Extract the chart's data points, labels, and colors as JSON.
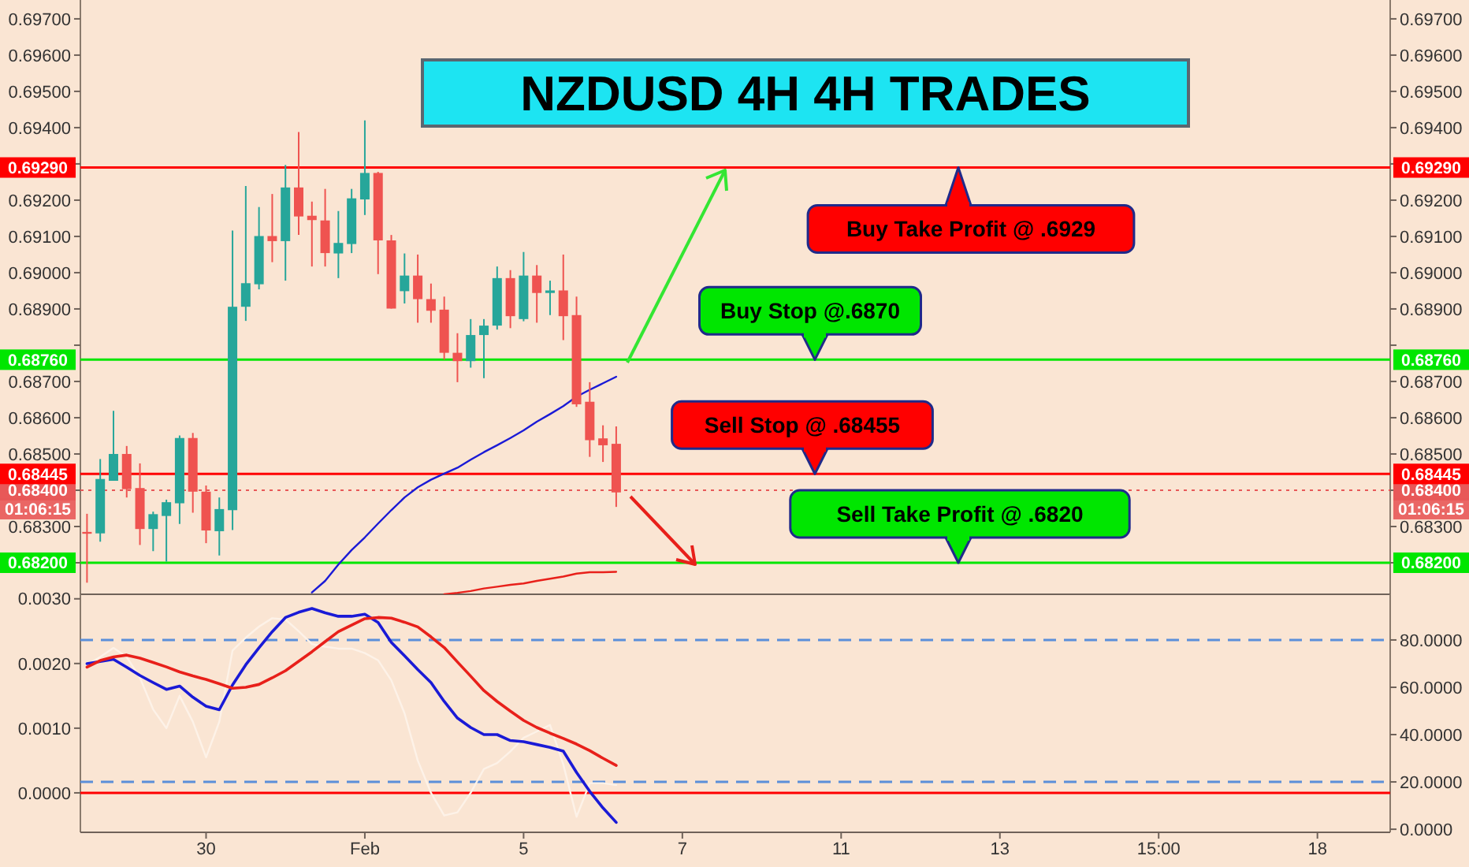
{
  "chart_data": [
    {
      "type": "candlestick",
      "title": "NZDUSD 4H 4H TRADES",
      "categories": [
        null,
        null,
        null,
        null,
        null,
        null,
        null,
        null,
        null,
        null,
        null,
        null,
        null,
        null,
        null,
        null,
        null,
        null,
        null,
        null,
        null,
        null,
        null,
        null,
        null,
        null,
        null,
        null,
        null,
        null,
        null,
        null,
        null,
        null,
        null,
        null,
        null,
        null,
        null,
        null,
        null,
        null,
        null,
        null,
        null,
        null,
        null,
        null,
        null,
        null,
        null,
        null,
        null,
        null,
        null,
        null,
        null,
        null,
        null,
        null,
        null,
        null,
        null,
        null,
        null,
        null,
        null,
        null,
        null,
        null,
        null,
        null,
        null,
        null,
        null,
        null,
        null,
        null,
        null,
        null,
        null,
        null,
        null,
        null,
        null,
        null,
        null,
        null,
        null,
        null,
        null,
        null,
        null,
        null,
        null,
        null,
        null,
        null,
        null
      ],
      "ohlc": [
        [
          0.68285,
          0.68335,
          0.68145,
          0.6828
        ],
        [
          0.68281,
          0.68486,
          0.68258,
          0.68431
        ],
        [
          0.68426,
          0.68619,
          0.68426,
          0.685
        ],
        [
          0.685,
          0.68522,
          0.6838,
          0.68403
        ],
        [
          0.68406,
          0.68474,
          0.68249,
          0.68293
        ],
        [
          0.68293,
          0.68341,
          0.68232,
          0.68334
        ],
        [
          0.68329,
          0.68374,
          0.68203,
          0.68367
        ],
        [
          0.68364,
          0.68551,
          0.68307,
          0.68544
        ],
        [
          0.68544,
          0.68558,
          0.68338,
          0.68396
        ],
        [
          0.68396,
          0.68413,
          0.68254,
          0.68289
        ],
        [
          0.68287,
          0.6838,
          0.6822,
          0.68348
        ],
        [
          0.68345,
          0.69116,
          0.6829,
          0.68906
        ],
        [
          0.68906,
          0.69239,
          0.68867,
          0.68971
        ],
        [
          0.68968,
          0.69181,
          0.68954,
          0.69101
        ],
        [
          0.69101,
          0.69217,
          0.69029,
          0.69087
        ],
        [
          0.69087,
          0.69297,
          0.68978,
          0.69235
        ],
        [
          0.69235,
          0.69388,
          0.69104,
          0.69155
        ],
        [
          0.69157,
          0.69196,
          0.69017,
          0.69145
        ],
        [
          0.69144,
          0.69231,
          0.69017,
          0.69054
        ],
        [
          0.69053,
          0.6917,
          0.68985,
          0.69082
        ],
        [
          0.69079,
          0.69231,
          0.69054,
          0.69205
        ],
        [
          0.69202,
          0.6942,
          0.69159,
          0.69275
        ],
        [
          0.69275,
          0.69278,
          0.68996,
          0.69089
        ],
        [
          0.69089,
          0.69104,
          0.68901,
          0.68901
        ],
        [
          0.68949,
          0.69053,
          0.68915,
          0.68992
        ],
        [
          0.68992,
          0.6905,
          0.68862,
          0.68927
        ],
        [
          0.68927,
          0.6897,
          0.68862,
          0.68895
        ],
        [
          0.68898,
          0.68934,
          0.6876,
          0.68779
        ],
        [
          0.68779,
          0.68833,
          0.68698,
          0.68756
        ],
        [
          0.68756,
          0.68872,
          0.68738,
          0.68828
        ],
        [
          0.68828,
          0.68872,
          0.68709,
          0.68854
        ],
        [
          0.68854,
          0.69017,
          0.68843,
          0.68985
        ],
        [
          0.68985,
          0.69007,
          0.68847,
          0.6888
        ],
        [
          0.68872,
          0.69057,
          0.68866,
          0.68992
        ],
        [
          0.68992,
          0.69021,
          0.68862,
          0.68944
        ],
        [
          0.68944,
          0.68978,
          0.68883,
          0.68951
        ],
        [
          0.68951,
          0.6905,
          0.68814,
          0.6888
        ],
        [
          0.68883,
          0.68934,
          0.6863,
          0.68637
        ],
        [
          0.68644,
          0.68698,
          0.68492,
          0.68538
        ],
        [
          0.68543,
          0.68579,
          0.68478,
          0.68524
        ],
        [
          0.68528,
          0.68576,
          0.68354,
          0.68394
        ],
        null,
        null,
        null,
        null,
        null,
        null,
        null,
        null,
        null,
        null,
        null,
        null,
        null,
        null,
        null,
        null,
        null,
        null,
        null,
        null,
        null,
        null,
        null,
        null,
        null,
        null,
        null,
        null,
        null,
        null,
        null,
        null,
        null,
        null,
        null,
        null,
        null,
        null,
        null,
        null,
        null,
        null,
        null,
        null,
        null,
        null,
        null,
        null,
        null,
        null,
        null,
        null,
        null,
        null,
        null,
        null,
        null,
        null
      ],
      "colors": [
        "#ef5350",
        "#26a69a",
        "#26a69a",
        "#ef5350",
        "#ef5350",
        "#26a69a",
        "#26a69a",
        "#26a69a",
        "#ef5350",
        "#ef5350",
        "#26a69a",
        "#26a69a",
        "#26a69a",
        "#26a69a",
        "#ef5350",
        "#26a69a",
        "#ef5350",
        "#ef5350",
        "#ef5350",
        "#26a69a",
        "#26a69a",
        "#26a69a",
        "#ef5350",
        "#ef5350",
        "#26a69a",
        "#ef5350",
        "#ef5350",
        "#ef5350",
        "#ef5350",
        "#26a69a",
        "#26a69a",
        "#26a69a",
        "#ef5350",
        "#26a69a",
        "#ef5350",
        "#26a69a",
        "#ef5350",
        "#ef5350",
        "#ef5350",
        "#ef5350",
        "#ef5350",
        null,
        null,
        null,
        null,
        null,
        null,
        null,
        null,
        null,
        null,
        null,
        null,
        null,
        null,
        null,
        null,
        null,
        null,
        null,
        null,
        null,
        null,
        null,
        null,
        null,
        null,
        null,
        null,
        null,
        null,
        null,
        null,
        null,
        null,
        null,
        null,
        null,
        null,
        null,
        null,
        null,
        null,
        null,
        null,
        null,
        null,
        null,
        null,
        null,
        null,
        null,
        null,
        null,
        null,
        null,
        null,
        null,
        null
      ],
      "series": [
        {
          "type": "line",
          "color": "#1a1ad6",
          "values": [
            null,
            null,
            null,
            null,
            null,
            null,
            null,
            null,
            null,
            null,
            null,
            null,
            null,
            null,
            null,
            null,
            null,
            0.68118,
            0.6815,
            0.68195,
            0.68235,
            0.6827,
            0.68308,
            0.68345,
            0.6838,
            0.68408,
            0.68429,
            0.68446,
            0.68462,
            0.68484,
            0.68505,
            0.68524,
            0.68544,
            0.68565,
            0.68589,
            0.6861,
            0.68632,
            0.68658,
            0.68677,
            0.68695,
            0.68713,
            null,
            null,
            null,
            null,
            null,
            null,
            null,
            null,
            null,
            null,
            null,
            null,
            null,
            null,
            null,
            null,
            null,
            null,
            null,
            null,
            null,
            null,
            null,
            null,
            null,
            null,
            null,
            null,
            null,
            null,
            null,
            null,
            null,
            null,
            null,
            null,
            null,
            null,
            null,
            null,
            null,
            null,
            null,
            null,
            null,
            null,
            null,
            null,
            null,
            null,
            null,
            null,
            null,
            null,
            null,
            null,
            null,
            null
          ]
        },
        {
          "type": "line",
          "color": "#e8201a",
          "values": [
            null,
            null,
            null,
            null,
            null,
            null,
            null,
            null,
            null,
            null,
            null,
            null,
            null,
            null,
            null,
            null,
            null,
            null,
            null,
            null,
            null,
            null,
            null,
            null,
            null,
            null,
            null,
            0.68113,
            0.68117,
            0.68122,
            0.68129,
            0.68134,
            0.68139,
            0.68143,
            0.6815,
            0.68156,
            0.68162,
            0.6817,
            0.68174,
            0.68174,
            0.68175,
            null,
            null,
            null,
            null,
            null,
            null,
            null,
            null,
            null,
            null,
            null,
            null,
            null,
            null,
            null,
            null,
            null,
            null,
            null,
            null,
            null,
            null,
            null,
            null,
            null,
            null,
            null,
            null,
            null,
            null,
            null,
            null,
            null,
            null,
            null,
            null,
            null,
            null,
            null,
            null,
            null,
            null,
            null,
            null,
            null,
            null,
            null,
            null,
            null,
            null,
            null,
            null,
            null,
            null,
            null,
            null,
            null,
            null
          ]
        }
      ],
      "ylim": [
        0.68113,
        0.69752
      ],
      "yticks": [
        {
          "value": 0.682,
          "label": null
        },
        {
          "value": 0.683,
          "label": "0.68300"
        },
        {
          "value": 0.684,
          "label": null
        },
        {
          "value": 0.685,
          "label": "0.68500"
        },
        {
          "value": 0.686,
          "label": "0.68600"
        },
        {
          "value": 0.687,
          "label": "0.68700"
        },
        {
          "value": 0.688,
          "label": null
        },
        {
          "value": 0.689,
          "label": "0.68900"
        },
        {
          "value": 0.69,
          "label": "0.69000"
        },
        {
          "value": 0.691,
          "label": "0.69100"
        },
        {
          "value": 0.692,
          "label": "0.69200"
        },
        {
          "value": 0.693,
          "label": null
        },
        {
          "value": 0.694,
          "label": "0.69400"
        },
        {
          "value": 0.695,
          "label": "0.69500"
        },
        {
          "value": 0.696,
          "label": "0.69600"
        },
        {
          "value": 0.697,
          "label": "0.69700"
        }
      ],
      "y2lim": [
        0.68113,
        0.69752
      ],
      "y2ticks": [
        {
          "value": 0.682,
          "label": null
        },
        {
          "value": 0.683,
          "label": "0.68300"
        },
        {
          "value": 0.684,
          "label": null
        },
        {
          "value": 0.685,
          "label": "0.68500"
        },
        {
          "value": 0.686,
          "label": "0.68600"
        },
        {
          "value": 0.687,
          "label": "0.68700"
        },
        {
          "value": 0.688,
          "label": null
        },
        {
          "value": 0.689,
          "label": "0.68900"
        },
        {
          "value": 0.69,
          "label": "0.69000"
        },
        {
          "value": 0.691,
          "label": "0.69100"
        },
        {
          "value": 0.692,
          "label": "0.69200"
        },
        {
          "value": 0.693,
          "label": null
        },
        {
          "value": 0.694,
          "label": "0.69400"
        },
        {
          "value": 0.695,
          "label": "0.69500"
        },
        {
          "value": 0.696,
          "label": "0.69600"
        },
        {
          "value": 0.697,
          "label": "0.69700"
        }
      ],
      "tick_labels": "y",
      "ref_lines": [
        {
          "axis": "y",
          "value": 0.6929,
          "label": "0.69290",
          "color": "#ff0000"
        },
        {
          "axis": "y",
          "value": 0.6876,
          "label": "0.68760",
          "color": "#00e600"
        },
        {
          "axis": "y",
          "value": 0.68445,
          "label": "0.68445",
          "color": "#ff0000"
        },
        {
          "axis": "y",
          "value": 0.684,
          "label": "0.68400",
          "color": "#e85858",
          "line_style": "dotted"
        },
        {
          "axis": "y",
          "value": 0.682,
          "label": "0.68200",
          "color": "#00e600"
        }
      ],
      "annotations": [
        {
          "text": "Buy Take Profit @ .6929",
          "y": 0.6929
        },
        {
          "text": "Buy Stop @.6870",
          "y": 0.6876
        },
        {
          "text": "Sell Stop @ .68455",
          "y": 0.68445
        },
        {
          "text": "Sell Take Profit @ .6820",
          "y": 0.682
        },
        "01:06:15"
      ],
      "grid": false
    },
    {
      "type": "line",
      "categories": [
        null,
        null,
        null,
        null,
        null,
        null,
        null,
        null,
        null,
        "30",
        null,
        null,
        null,
        null,
        null,
        null,
        null,
        null,
        null,
        null,
        null,
        "Feb",
        null,
        null,
        null,
        null,
        null,
        null,
        null,
        null,
        null,
        null,
        null,
        "5",
        null,
        null,
        null,
        null,
        null,
        null,
        null,
        null,
        null,
        null,
        null,
        "7",
        null,
        null,
        null,
        null,
        null,
        null,
        null,
        null,
        null,
        null,
        null,
        "11",
        null,
        null,
        null,
        null,
        null,
        null,
        null,
        null,
        null,
        null,
        null,
        "13",
        null,
        null,
        null,
        null,
        null,
        null,
        null,
        null,
        null,
        null,
        null,
        "15:00",
        null,
        null,
        null,
        null,
        null,
        null,
        null,
        null,
        null,
        null,
        null,
        "18",
        null,
        null,
        null,
        null,
        null
      ],
      "series": [
        {
          "color": "#fdf2e8",
          "values": [
            0.00198,
            0.0021,
            0.00224,
            0.0021,
            0.00178,
            0.00129,
            0.001,
            0.0015,
            0.0011,
            0.00055,
            0.0011,
            0.0022,
            0.0024,
            0.00257,
            0.0027,
            0.00268,
            0.0025,
            0.0023,
            0.00226,
            0.00223,
            0.00223,
            0.00216,
            0.00205,
            0.00174,
            0.00123,
            0.0005,
            0,
            -0.00035,
            -0.0003,
            0,
            0.00037,
            0.00046,
            0.00064,
            0.00085,
            0.00095,
            0.00105,
            0.00044,
            -0.00037,
            0.00015,
            0.00015,
            0.00012,
            null,
            null,
            null,
            null,
            null,
            null,
            null,
            null,
            null,
            null,
            null,
            null,
            null,
            null,
            null,
            null,
            null,
            null,
            null,
            null,
            null,
            null,
            null,
            null,
            null,
            null,
            null,
            null,
            null,
            null,
            null,
            null,
            null,
            null,
            null,
            null,
            null,
            null,
            null,
            null,
            null,
            null,
            null,
            null,
            null,
            null,
            null,
            null,
            null,
            null,
            null,
            null,
            null,
            null,
            null,
            null,
            null,
            null
          ]
        },
        {
          "color": "#1a1ad6",
          "axis": "y2",
          "values": [
            70,
            70.9,
            71.8,
            68.5,
            65,
            62,
            59.1,
            60.5,
            55.8,
            52,
            50.5,
            61,
            69.5,
            76.7,
            83.5,
            89.5,
            91.7,
            93.3,
            91.5,
            90,
            90,
            90.9,
            87.4,
            79,
            73.3,
            67.5,
            62,
            54,
            47,
            43,
            40,
            40,
            37.5,
            37,
            35.8,
            34.6,
            33,
            24,
            16,
            9,
            2.9,
            null,
            null,
            null,
            null,
            null,
            null,
            null,
            null,
            null,
            null,
            null,
            null,
            null,
            null,
            null,
            null,
            null,
            null,
            null,
            null,
            null,
            null,
            null,
            null,
            null,
            null,
            null,
            null,
            null,
            null,
            null,
            null,
            null,
            null,
            null,
            null,
            null,
            null,
            null,
            null,
            null,
            null,
            null,
            null,
            null,
            null,
            null,
            null,
            null,
            null,
            null,
            null,
            null,
            null,
            null,
            null,
            null,
            null
          ]
        },
        {
          "color": "#e8201a",
          "axis": "y2",
          "values": [
            68.5,
            71.3,
            72.8,
            73.6,
            72.3,
            70.5,
            68.6,
            66.5,
            64.8,
            63.3,
            61.5,
            59.6,
            60,
            61.2,
            64,
            67,
            71,
            75,
            79.3,
            83.5,
            86.3,
            89,
            89.5,
            89.2,
            87.5,
            85.5,
            81.3,
            76.8,
            70.7,
            64.7,
            58.6,
            54,
            49.9,
            46,
            43,
            40.6,
            38.4,
            36,
            33.2,
            30,
            27,
            null,
            null,
            null,
            null,
            null,
            null,
            null,
            null,
            null,
            null,
            null,
            null,
            null,
            null,
            null,
            null,
            null,
            null,
            null,
            null,
            null,
            null,
            null,
            null,
            null,
            null,
            null,
            null,
            null,
            null,
            null,
            null,
            null,
            null,
            null,
            null,
            null,
            null,
            null,
            null,
            null,
            null,
            null,
            null,
            null,
            null,
            null,
            null,
            null,
            null,
            null,
            null,
            null,
            null,
            null,
            null,
            null,
            null
          ]
        }
      ],
      "ylim": [
        -0.00061,
        0.00307
      ],
      "yticks": [
        {
          "value": 0,
          "label": "0.0000"
        },
        {
          "value": 0.001,
          "label": "0.0010"
        },
        {
          "value": 0.002,
          "label": "0.0020"
        },
        {
          "value": 0.003,
          "label": "0.0030"
        }
      ],
      "y2lim": [
        -1.3,
        99.3
      ],
      "y2ticks": [
        {
          "value": 0,
          "label": "0.0000"
        },
        {
          "value": 20,
          "label": "20.0000"
        },
        {
          "value": 40,
          "label": "40.0000"
        },
        {
          "value": 60,
          "label": "60.0000"
        },
        {
          "value": 80,
          "label": "80.0000"
        }
      ],
      "ref_lines": [
        {
          "axis": "y2",
          "value": 80,
          "color": "#5b8fd9",
          "line_style": "dashed"
        },
        {
          "axis": "y2",
          "value": 20,
          "color": "#5b8fd9",
          "line_style": "dashed"
        },
        {
          "axis": "y",
          "value": 0,
          "color": "#ff0000"
        }
      ],
      "grid": false
    }
  ]
}
